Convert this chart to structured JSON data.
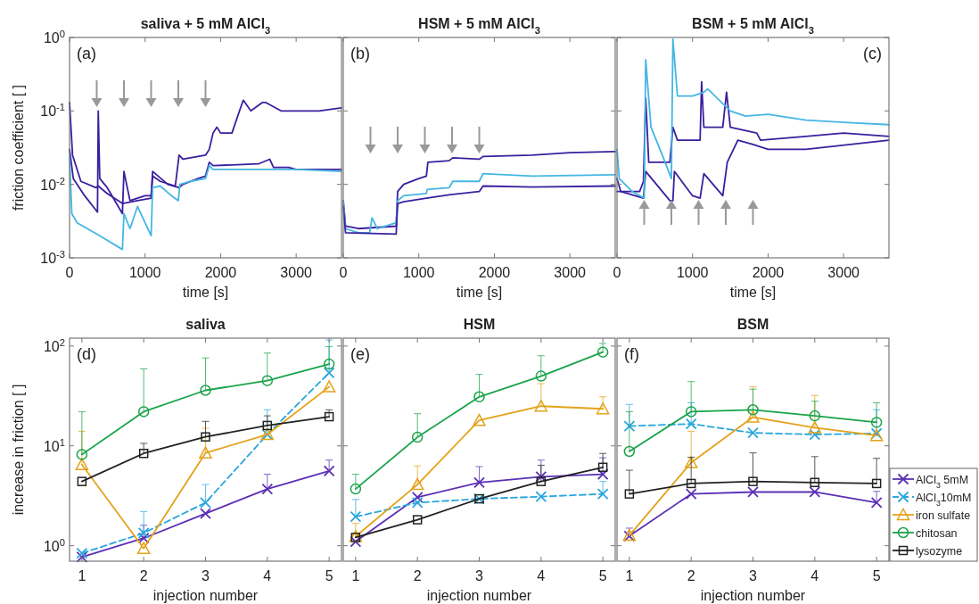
{
  "chart_data": [
    {
      "type": "line",
      "title": "saliva + 5 mM AlCl$_{3}$",
      "xlabel": "time [s]",
      "ylabel": "friction coefficient [ ]",
      "annotations": [
        "(a)"
      ],
      "log": true,
      "xlim": [
        0,
        3600
      ],
      "xticks": [
        0,
        1000,
        2000,
        3000
      ],
      "ylim": [
        0.001,
        1
      ],
      "yticks": [
        {
          "value": 0.001,
          "label": "10$^{-3}$"
        },
        {
          "value": 0.01,
          "label": "10$^{-2}$"
        },
        {
          "value": 0.1,
          "label": "10$^{-1}$"
        },
        {
          "value": 1,
          "label": "10$^{0}$"
        }
      ],
      "legend": false,
      "series": [
        {
          "color": "#3b1f9e",
          "x": [
            0,
            40,
            150,
            350,
            380,
            500,
            700,
            900,
            1080,
            1100,
            1200,
            1400,
            1450,
            1500,
            1800,
            1850,
            1900,
            1950,
            2000,
            2150,
            2250,
            2300,
            2400,
            2550,
            2600,
            2800,
            3000,
            3300,
            3600
          ],
          "values": [
            0.13,
            0.025,
            0.011,
            0.009,
            0.0095,
            0.0075,
            0.0055,
            0.006,
            0.0065,
            0.013,
            0.011,
            0.0095,
            0.025,
            0.022,
            0.025,
            0.03,
            0.05,
            0.06,
            0.05,
            0.05,
            0.1,
            0.14,
            0.1,
            0.13,
            0.13,
            0.1,
            0.1,
            0.1,
            0.11
          ]
        },
        {
          "color": "#3b1f9e",
          "x": [
            0,
            50,
            200,
            370,
            380,
            400,
            500,
            700,
            720,
            800,
            1000,
            1080,
            1100,
            1300,
            1450,
            1500,
            1700,
            1800,
            1850,
            1900,
            2500,
            2650,
            2700,
            2900,
            3000,
            3300,
            3600
          ],
          "values": [
            0.03,
            0.012,
            0.007,
            0.0042,
            0.1,
            0.012,
            0.009,
            0.004,
            0.015,
            0.006,
            0.007,
            0.007,
            0.015,
            0.01,
            0.009,
            0.01,
            0.012,
            0.013,
            0.02,
            0.018,
            0.019,
            0.022,
            0.017,
            0.017,
            0.016,
            0.016,
            0.016
          ]
        },
        {
          "color": "#45b6e3",
          "x": [
            0,
            30,
            100,
            400,
            700,
            720,
            800,
            900,
            1000,
            1080,
            1100,
            1200,
            1350,
            1440,
            1460,
            1600,
            1800,
            1850,
            1900,
            2200,
            2600,
            3000,
            3600
          ],
          "values": [
            0.025,
            0.004,
            0.003,
            0.002,
            0.0013,
            0.004,
            0.0025,
            0.005,
            0.003,
            0.002,
            0.009,
            0.0095,
            0.007,
            0.006,
            0.01,
            0.011,
            0.012,
            0.018,
            0.016,
            0.016,
            0.016,
            0.016,
            0.015
          ]
        }
      ]
    },
    {
      "type": "line",
      "title": "HSM + 5 mM AlCl$_{3}$",
      "xlabel": "time [s]",
      "annotations": [
        "(b)"
      ],
      "log": true,
      "xlim": [
        0,
        3600
      ],
      "xticks": [
        0,
        1000,
        2000,
        3000
      ],
      "ylim": [
        0.001,
        1
      ],
      "yticks": [
        0.001,
        0.01,
        0.1,
        1
      ],
      "tick_labels": "x",
      "legend": false,
      "series": [
        {
          "color": "#3b1f9e",
          "x": [
            0,
            30,
            200,
            700,
            720,
            800,
            1000,
            1100,
            1120,
            1400,
            1450,
            1800,
            1850,
            2500,
            3000,
            3600
          ],
          "values": [
            0.006,
            0.0027,
            0.0025,
            0.0027,
            0.008,
            0.01,
            0.012,
            0.013,
            0.02,
            0.021,
            0.023,
            0.022,
            0.024,
            0.025,
            0.027,
            0.028
          ]
        },
        {
          "color": "#45b6e3",
          "x": [
            0,
            30,
            200,
            350,
            380,
            450,
            700,
            720,
            800,
            1100,
            1110,
            1400,
            1450,
            1800,
            1850,
            2500,
            3600
          ],
          "values": [
            0.006,
            0.0025,
            0.0022,
            0.0022,
            0.0035,
            0.0025,
            0.003,
            0.006,
            0.007,
            0.0075,
            0.0085,
            0.009,
            0.011,
            0.011,
            0.014,
            0.013,
            0.0135
          ]
        },
        {
          "color": "#3b1f9e",
          "x": [
            0,
            30,
            700,
            720,
            800,
            1100,
            1400,
            1800,
            1850,
            2500,
            3600
          ],
          "values": [
            0.005,
            0.0022,
            0.0021,
            0.0055,
            0.0058,
            0.0065,
            0.0072,
            0.008,
            0.0095,
            0.0092,
            0.0095
          ]
        }
      ]
    },
    {
      "type": "line",
      "title": "BSM + 5 mM AlCl$_{3}$",
      "xlabel": "time [s]",
      "annotations": [
        "(c)"
      ],
      "log": true,
      "xlim": [
        0,
        3600
      ],
      "xticks": [
        0,
        1000,
        2000,
        3000
      ],
      "ylim": [
        0.001,
        1
      ],
      "yticks": [
        0.001,
        0.01,
        0.1,
        1
      ],
      "tick_labels": "x",
      "legend": false,
      "series": [
        {
          "color": "#3b1f9e",
          "x": [
            0,
            300,
            350,
            380,
            420,
            700,
            740,
            800,
            1100,
            1120,
            1150,
            1400,
            1450,
            1500,
            1850,
            1900,
            2500,
            3000,
            3600
          ],
          "values": [
            0.008,
            0.008,
            0.011,
            0.15,
            0.02,
            0.02,
            0.06,
            0.04,
            0.04,
            0.25,
            0.06,
            0.06,
            0.18,
            0.06,
            0.05,
            0.04,
            0.045,
            0.05,
            0.045
          ]
        },
        {
          "color": "#3b1f9e",
          "x": [
            0,
            50,
            350,
            380,
            700,
            740,
            760,
            1000,
            1100,
            1150,
            1400,
            1460,
            1600,
            1800,
            2000,
            2500,
            3600
          ],
          "values": [
            0.012,
            0.008,
            0.0065,
            0.015,
            0.006,
            0.006,
            0.015,
            0.007,
            0.0065,
            0.014,
            0.007,
            0.02,
            0.04,
            0.035,
            0.03,
            0.03,
            0.04
          ]
        },
        {
          "color": "#45b6e3",
          "x": [
            0,
            30,
            200,
            360,
            380,
            450,
            600,
            720,
            740,
            800,
            1000,
            1150,
            1200,
            1500,
            1700,
            2000,
            2500,
            3000,
            3600
          ],
          "values": [
            0.03,
            0.012,
            0.008,
            0.0065,
            0.5,
            0.06,
            0.025,
            0.012,
            0.95,
            0.16,
            0.16,
            0.18,
            0.2,
            0.1,
            0.085,
            0.09,
            0.075,
            0.07,
            0.065
          ]
        }
      ]
    },
    {
      "type": "line",
      "title": "saliva",
      "xlabel": "injection number",
      "ylabel": "increase in friction [ ]",
      "annotations": [
        "(d)"
      ],
      "log": true,
      "x": [
        1,
        2,
        3,
        4,
        5
      ],
      "xlim": [
        0.8,
        5.2
      ],
      "xticks": [
        1,
        2,
        3,
        4,
        5
      ],
      "ylim": [
        0.7,
        120
      ],
      "yticks": [
        {
          "value": 1,
          "label": "10$^{0}$"
        },
        {
          "value": 10,
          "label": "10$^{1}$"
        },
        {
          "value": 100,
          "label": "10$^{2}$"
        }
      ],
      "legend": false,
      "series": [
        {
          "color": "#5b2fb5",
          "marker": "cross",
          "line_style": "solid",
          "values": [
            0.77,
            1.19,
            2.1,
            3.7,
            5.6
          ],
          "errors": [
            null,
            [
              1.19,
              1.6
            ],
            null,
            [
              3.7,
              5.2
            ],
            [
              5.6,
              7.2
            ]
          ]
        },
        {
          "color": "#2aa6dd",
          "marker": "cross",
          "line_style": "dashed",
          "values": [
            0.84,
            1.34,
            2.7,
            13,
            54
          ],
          "errors": [
            null,
            [
              1.34,
              2.2
            ],
            [
              2.7,
              4.1
            ],
            [
              13,
              23
            ],
            [
              54,
              115
            ]
          ]
        },
        {
          "color": "#e3a21a",
          "marker": "triangle",
          "line_style": "solid",
          "values": [
            6.5,
            0.94,
            8.5,
            13,
            39
          ],
          "errors": [
            [
              6.5,
              14
            ],
            null,
            [
              8.5,
              15
            ],
            null,
            null
          ]
        },
        {
          "color": "#1aa34a",
          "marker": "circle",
          "line_style": "solid",
          "values": [
            8.2,
            22,
            36,
            45,
            66
          ],
          "errors": [
            [
              8.2,
              22
            ],
            [
              22,
              59
            ],
            [
              36,
              76
            ],
            [
              45,
              85
            ],
            [
              66,
              99
            ]
          ]
        },
        {
          "color": "#222222",
          "marker": "square",
          "line_style": "solid",
          "values": [
            4.4,
            8.4,
            12.3,
            16,
            19.6
          ],
          "errors": [
            null,
            [
              8.4,
              10.6
            ],
            [
              12.3,
              17.6
            ],
            [
              16,
              20
            ],
            [
              19.6,
              23
            ]
          ]
        }
      ]
    },
    {
      "type": "line",
      "title": "HSM",
      "xlabel": "injection number",
      "annotations": [
        "(e)"
      ],
      "log": true,
      "x": [
        1,
        2,
        3,
        4,
        5
      ],
      "xlim": [
        0.8,
        5.2
      ],
      "xticks": [
        1,
        2,
        3,
        4,
        5
      ],
      "ylim": [
        0.7,
        120
      ],
      "yticks": [
        1,
        10,
        100
      ],
      "tick_labels": "x",
      "legend": false,
      "series": [
        {
          "color": "#5b2fb5",
          "marker": "cross",
          "line_style": "solid",
          "values": [
            1.1,
            3.05,
            4.3,
            4.9,
            5.2
          ],
          "errors": [
            null,
            null,
            [
              4.3,
              6.2
            ],
            [
              4.9,
              7.2
            ],
            [
              5.2,
              7.6
            ]
          ]
        },
        {
          "color": "#2aa6dd",
          "marker": "cross",
          "line_style": "dashed",
          "values": [
            1.95,
            2.7,
            2.95,
            3.1,
            3.3
          ],
          "errors": [
            [
              1.95,
              2.9
            ],
            null,
            null,
            null,
            [
              3.3,
              4.4
            ]
          ]
        },
        {
          "color": "#e3a21a",
          "marker": "triangle",
          "line_style": "solid",
          "values": [
            1.24,
            4.1,
            18,
            25,
            23.5
          ],
          "errors": [
            [
              1.24,
              1.67
            ],
            [
              4.1,
              6.3
            ],
            null,
            [
              25,
              42
            ],
            [
              23.5,
              31
            ]
          ]
        },
        {
          "color": "#1aa34a",
          "marker": "circle",
          "line_style": "solid",
          "values": [
            3.7,
            12.2,
            31,
            50,
            87
          ],
          "errors": [
            [
              3.7,
              5.2
            ],
            [
              12.2,
              21
            ],
            [
              31,
              52
            ],
            [
              50,
              80
            ],
            [
              87,
              106
            ]
          ]
        },
        {
          "color": "#222222",
          "marker": "square",
          "line_style": "solid",
          "values": [
            1.21,
            1.82,
            2.95,
            4.4,
            6.1
          ],
          "errors": [
            null,
            null,
            null,
            [
              4.4,
              6.4
            ],
            [
              6.1,
              8.4
            ]
          ]
        }
      ]
    },
    {
      "type": "line",
      "title": "BSM",
      "xlabel": "injection number",
      "annotations": [
        "(f)"
      ],
      "log": true,
      "x": [
        1,
        2,
        3,
        4,
        5
      ],
      "xlim": [
        0.8,
        5.2
      ],
      "xticks": [
        1,
        2,
        3,
        4,
        5
      ],
      "ylim": [
        0.7,
        120
      ],
      "yticks": [
        1,
        10,
        100
      ],
      "tick_labels": "x",
      "legend": "bottom right",
      "series": [
        {
          "name": "AlCl$_{3}$  5mM",
          "color": "#5b2fb5",
          "marker": "cross",
          "line_style": "solid",
          "values": [
            1.25,
            3.3,
            3.45,
            3.45,
            2.7
          ],
          "errors": [
            [
              1.25,
              1.5
            ],
            null,
            null,
            null,
            [
              2.7,
              3.5
            ]
          ]
        },
        {
          "name": "AlCl$_{3}$10mM",
          "color": "#2aa6dd",
          "marker": "cross",
          "line_style": "dashed",
          "values": [
            15.8,
            16.6,
            13.5,
            13,
            13.3
          ],
          "errors": [
            [
              15.8,
              26
            ],
            [
              16.6,
              27
            ],
            null,
            null,
            [
              13.3,
              23
            ]
          ]
        },
        {
          "name": "iron sulfate",
          "color": "#e3a21a",
          "marker": "triangle",
          "line_style": "solid",
          "values": [
            1.27,
            6.8,
            19.4,
            15.2,
            12.7
          ],
          "errors": [
            null,
            [
              6.8,
              14
            ],
            [
              19.4,
              39
            ],
            [
              15.2,
              32
            ],
            null
          ]
        },
        {
          "name": "chitosan",
          "color": "#1aa34a",
          "marker": "circle",
          "line_style": "solid",
          "values": [
            8.8,
            22,
            23,
            20,
            17.2
          ],
          "errors": [
            [
              8.8,
              22
            ],
            [
              22,
              44
            ],
            [
              23,
              37
            ],
            [
              20,
              28
            ],
            [
              17.2,
              27
            ]
          ]
        },
        {
          "name": "lysozyme",
          "color": "#222222",
          "marker": "square",
          "line_style": "solid",
          "values": [
            3.3,
            4.2,
            4.4,
            4.3,
            4.2
          ],
          "errors": [
            [
              3.3,
              5.7
            ],
            [
              4.2,
              7.7
            ],
            [
              4.4,
              8.5
            ],
            [
              4.3,
              7.8
            ],
            [
              4.2,
              7.5
            ]
          ]
        }
      ]
    }
  ]
}
